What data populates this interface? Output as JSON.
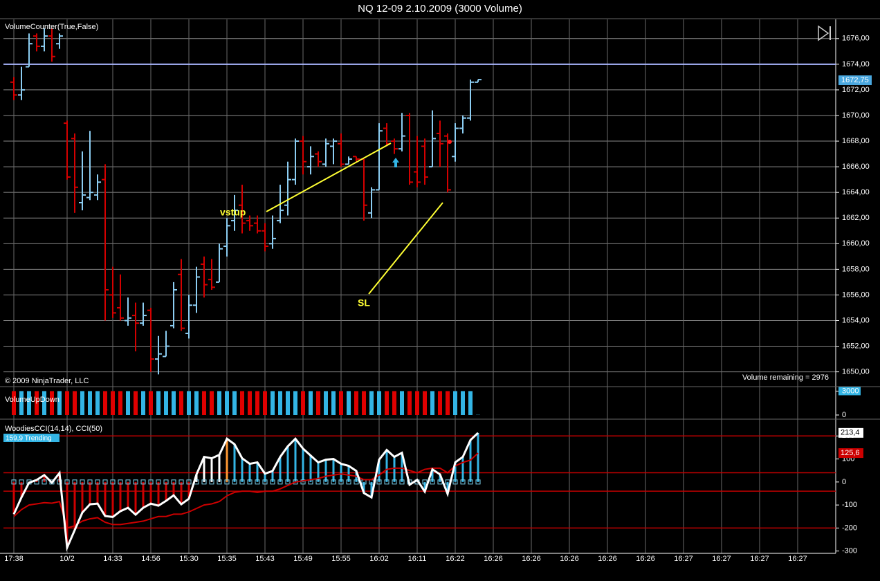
{
  "chart_data": [
    {
      "type": "ohlc",
      "title": "NQ 12-09  2.10.2009 (3000 Volume)",
      "label": "VolumeCounter(True,False)",
      "copyright": "© 2009 NinjaTrader, LLC",
      "status": "Volume remaining = 2976",
      "annotations": [
        "vstup",
        "SL"
      ],
      "up_color": "#8ccdf2",
      "down_color": "#d40000",
      "grid": true,
      "ylim": [
        1648.9,
        1677.5
      ],
      "yticks": [
        {
          "value": 1650,
          "label": "1650,00"
        },
        {
          "value": 1652,
          "label": "1652,00"
        },
        {
          "value": 1654,
          "label": "1654,00"
        },
        {
          "value": 1656,
          "label": "1656,00"
        },
        {
          "value": 1658,
          "label": "1658,00"
        },
        {
          "value": 1660,
          "label": "1660,00"
        },
        {
          "value": 1662,
          "label": "1662,00"
        },
        {
          "value": 1664,
          "label": "1664,00"
        },
        {
          "value": 1666,
          "label": "1666,00"
        },
        {
          "value": 1668,
          "label": "1668,00"
        },
        {
          "value": 1670,
          "label": "1670,00"
        },
        {
          "value": 1672,
          "label": "1672,00"
        },
        {
          "value": 1674,
          "label": "1674,00"
        },
        {
          "value": 1676,
          "label": "1676,00"
        }
      ],
      "level_line": 1674,
      "level_color": "#aab6ff",
      "last_price": {
        "value": 1672.75,
        "label": "1672,75"
      },
      "open": [
        1672.6,
        1671.6,
        1673.8,
        1676.2,
        1675.4,
        1676.2,
        1675.6,
        1669.4,
        1668.2,
        1663.2,
        1663.6,
        1663.8,
        1665.0,
        1656.0,
        1655.0,
        1654.0,
        1654.4,
        1653.8,
        1654.8,
        1651.0,
        1651.2,
        1653.6,
        1657.6,
        1653.0,
        1655.2,
        1658.4,
        1657.2,
        1657.0,
        1659.8,
        1661.8,
        1663.0,
        1661.8,
        1661.6,
        1661.0,
        1660.0,
        1661.8,
        1663.0,
        1665.0,
        1668.0,
        1666.0,
        1667.0,
        1666.2,
        1667.6,
        1667.8,
        1666.2,
        1666.8,
        1666.6,
        1662.4,
        1664.2,
        1669.0,
        1668.0,
        1667.4,
        1670.0,
        1665.6,
        1667.6,
        1666.0,
        1668.6,
        1668.4,
        1666.8,
        1669.0,
        1669.8,
        1672.6
      ],
      "high": [
        1673.0,
        1673.8,
        1676.4,
        1676.4,
        1676.8,
        1676.8,
        1676.4,
        1669.6,
        1668.6,
        1667.2,
        1668.8,
        1665.4,
        1666.2,
        1658.2,
        1657.6,
        1655.8,
        1655.4,
        1655.4,
        1655.0,
        1652.8,
        1653.2,
        1657.0,
        1658.8,
        1656.0,
        1658.2,
        1659.0,
        1658.8,
        1660.0,
        1662.0,
        1663.8,
        1664.6,
        1662.2,
        1662.2,
        1661.6,
        1662.2,
        1664.6,
        1666.4,
        1668.2,
        1668.4,
        1667.6,
        1667.2,
        1668.2,
        1668.2,
        1668.6,
        1666.8,
        1666.8,
        1666.6,
        1664.4,
        1669.4,
        1669.4,
        1668.2,
        1670.2,
        1670.2,
        1668.4,
        1668.2,
        1670.4,
        1669.6,
        1668.6,
        1669.4,
        1670.0,
        1672.8,
        1672.8
      ],
      "low": [
        1671.2,
        1671.2,
        1673.8,
        1675.0,
        1675.0,
        1674.2,
        1675.2,
        1665.0,
        1662.4,
        1662.6,
        1663.4,
        1663.4,
        1654.0,
        1654.2,
        1654.0,
        1653.6,
        1651.6,
        1653.6,
        1650.0,
        1649.8,
        1651.2,
        1653.4,
        1653.2,
        1652.6,
        1654.6,
        1655.8,
        1656.4,
        1657.0,
        1659.0,
        1661.0,
        1660.8,
        1661.0,
        1660.8,
        1659.4,
        1659.6,
        1661.6,
        1662.2,
        1664.6,
        1665.4,
        1665.4,
        1666.0,
        1666.0,
        1666.2,
        1666.0,
        1666.2,
        1666.4,
        1661.8,
        1662.0,
        1664.2,
        1667.6,
        1667.0,
        1667.2,
        1664.6,
        1664.4,
        1664.6,
        1666.0,
        1666.0,
        1664.0,
        1666.4,
        1668.6,
        1669.6,
        1672.6
      ],
      "close": [
        1671.6,
        1672.0,
        1675.6,
        1675.4,
        1676.2,
        1674.6,
        1676.2,
        1665.2,
        1664.4,
        1663.8,
        1664.0,
        1664.8,
        1656.4,
        1654.6,
        1654.2,
        1654.2,
        1653.8,
        1654.4,
        1651.0,
        1651.4,
        1652.0,
        1656.4,
        1653.4,
        1655.2,
        1657.4,
        1656.8,
        1656.6,
        1659.6,
        1661.4,
        1662.6,
        1661.6,
        1661.4,
        1661.0,
        1659.8,
        1660.4,
        1662.6,
        1665.0,
        1668.0,
        1666.4,
        1666.8,
        1666.4,
        1667.8,
        1668.0,
        1666.2,
        1666.6,
        1666.6,
        1663.0,
        1664.2,
        1668.8,
        1667.8,
        1667.4,
        1668.4,
        1664.8,
        1664.8,
        1665.2,
        1668.2,
        1667.8,
        1664.2,
        1669.0,
        1669.8,
        1672.6,
        1672.8
      ]
    },
    {
      "type": "bar",
      "label": "VolumeUpDown",
      "ylim": [
        0,
        3300
      ],
      "yticks": [
        0,
        3000
      ],
      "series": [
        {
          "color": "#33b5e5",
          "values": [
            null,
            3000,
            3000,
            null,
            3000,
            null,
            3000,
            null,
            null,
            3000,
            3000,
            3000,
            null,
            null,
            null,
            3000,
            null,
            3000,
            null,
            3000,
            3000,
            3000,
            null,
            3000,
            3000,
            null,
            null,
            3000,
            3000,
            3000,
            null,
            null,
            null,
            null,
            3000,
            3000,
            3000,
            3000,
            null,
            3000,
            null,
            3000,
            3000,
            null,
            3000,
            null,
            null,
            3000,
            3000,
            null,
            null,
            3000,
            null,
            null,
            null,
            3000,
            null,
            null,
            3000,
            3000,
            3000,
            24
          ]
        },
        {
          "color": "#e00000",
          "values": [
            3000,
            null,
            null,
            3000,
            null,
            3000,
            null,
            3000,
            3000,
            null,
            null,
            null,
            3000,
            3000,
            3000,
            null,
            3000,
            null,
            3000,
            null,
            null,
            null,
            3000,
            null,
            null,
            3000,
            3000,
            null,
            null,
            null,
            3000,
            3000,
            3000,
            3000,
            null,
            null,
            null,
            null,
            3000,
            null,
            3000,
            null,
            null,
            3000,
            null,
            3000,
            3000,
            null,
            null,
            3000,
            3000,
            null,
            3000,
            3000,
            3000,
            null,
            3000,
            3000,
            null,
            null,
            null,
            null
          ]
        }
      ]
    },
    {
      "type": "cci",
      "label": "WoodiesCCI(14,14), CCI(50)",
      "badge": "159,9 Trending",
      "categories": [
        "17:38",
        null,
        null,
        null,
        null,
        null,
        null,
        "10/2",
        null,
        null,
        null,
        null,
        null,
        "14:33",
        null,
        null,
        null,
        null,
        "14:56",
        null,
        null,
        null,
        null,
        "15:30",
        null,
        null,
        null,
        null,
        "15:35",
        null,
        null,
        null,
        null,
        "15:43",
        null,
        null,
        null,
        null,
        "15:49",
        null,
        null,
        null,
        null,
        "15:55",
        null,
        null,
        null,
        null,
        "16:02",
        null,
        null,
        null,
        null,
        "16:11",
        null,
        null,
        null,
        null,
        "16:22",
        null,
        null,
        null
      ],
      "future_categories": [
        "16:26",
        "16:26",
        "16:26",
        "16:26",
        "16:26",
        "16:27",
        "16:27",
        "16:27",
        "16:27"
      ],
      "ylim": [
        -310,
        255
      ],
      "yticks": [
        -300,
        -200,
        -100,
        0,
        100,
        200
      ],
      "levels": [
        200,
        40,
        -40,
        -200
      ],
      "level_color": "#c00000",
      "hist_colors": [
        "#cc0000",
        "#cc0000",
        "#cc0000",
        "#cc0000",
        "#cc0000",
        "#cc0000",
        "#cc0000",
        "#cc0000",
        "#cc0000",
        "#cc0000",
        "#cc0000",
        "#cc0000",
        "#cc0000",
        "#cc0000",
        "#cc0000",
        "#cc0000",
        "#cc0000",
        "#cc0000",
        "#cc0000",
        "#cc0000",
        "#cc0000",
        "#cc0000",
        "#cc0000",
        "#cc0000",
        "#ffffff",
        "#ffffff",
        "#ffffff",
        "#ffffff",
        "#ff9933",
        "#33b5e5",
        "#33b5e5",
        "#33b5e5",
        "#33b5e5",
        "#33b5e5",
        "#33b5e5",
        "#33b5e5",
        "#33b5e5",
        "#33b5e5",
        "#33b5e5",
        "#33b5e5",
        "#33b5e5",
        "#33b5e5",
        "#33b5e5",
        "#33b5e5",
        "#33b5e5",
        "#33b5e5",
        "#33b5e5",
        "#33b5e5",
        "#33b5e5",
        "#33b5e5",
        "#33b5e5",
        "#33b5e5",
        "#33b5e5",
        "#33b5e5",
        "#33b5e5",
        "#33b5e5",
        "#33b5e5",
        "#33b5e5",
        "#33b5e5",
        "#33b5e5",
        "#33b5e5",
        "#33b5e5"
      ],
      "series": [
        {
          "color": "#cc0000",
          "last_label": "125,6",
          "values": [
            -150,
            -120,
            -100,
            -95,
            -90,
            -92,
            -85,
            -200,
            -190,
            -170,
            -160,
            -155,
            -175,
            -185,
            -185,
            -180,
            -175,
            -170,
            -160,
            -150,
            -150,
            -140,
            -140,
            -130,
            -115,
            -100,
            -95,
            -85,
            -60,
            -45,
            -40,
            -40,
            -45,
            -40,
            -40,
            -30,
            -15,
            0,
            5,
            10,
            15,
            25,
            30,
            35,
            30,
            25,
            10,
            10,
            30,
            55,
            60,
            60,
            50,
            40,
            55,
            60,
            60,
            40,
            70,
            85,
            95,
            125.6
          ]
        },
        {
          "color": "#ffffff",
          "last_label": "213,4",
          "values": [
            -140,
            -67,
            -3,
            9,
            30,
            -3,
            39,
            -285,
            -209,
            -133,
            -97,
            -94,
            -148,
            -152,
            -127,
            -112,
            -142,
            -112,
            -94,
            -103,
            -82,
            -58,
            -97,
            -73,
            33,
            109,
            103,
            118,
            188,
            164,
            103,
            79,
            85,
            36,
            48,
            109,
            155,
            188,
            145,
            115,
            85,
            97,
            100,
            79,
            70,
            48,
            -48,
            -67,
            97,
            139,
            109,
            127,
            -12,
            9,
            -42,
            55,
            33,
            -52,
            85,
            109,
            182,
            213.4
          ]
        }
      ]
    }
  ]
}
